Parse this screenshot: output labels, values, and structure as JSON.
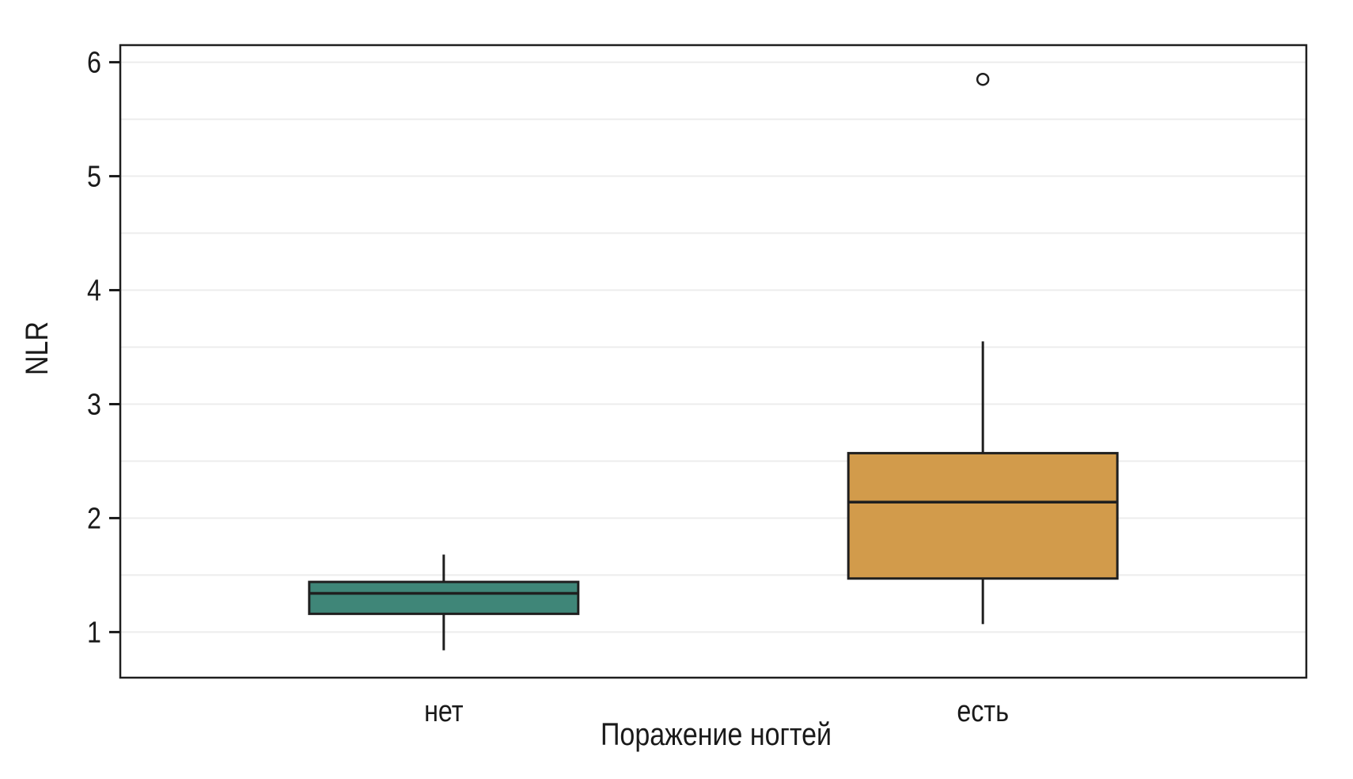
{
  "chart_data": {
    "type": "box",
    "title": "",
    "xlabel": "Поражение ногтей",
    "ylabel": "NLR",
    "categories": [
      "нет",
      "есть"
    ],
    "ylim": [
      0.6,
      6.15
    ],
    "y_ticks": [
      1,
      2,
      3,
      4,
      5,
      6
    ],
    "grid_step": 0.5,
    "grid_on": true,
    "legend": "none",
    "grid_color": "#ececec",
    "frame_color": "#1f1f1f",
    "text_color": "#1a1a1a",
    "boxes": [
      {
        "category": "нет",
        "fill": "#3F8678",
        "whisker_low": 0.84,
        "q1": 1.16,
        "median": 1.34,
        "q3": 1.44,
        "whisker_high": 1.68,
        "outliers": []
      },
      {
        "category": "есть",
        "fill": "#D29B4B",
        "whisker_low": 1.07,
        "q1": 1.47,
        "median": 2.14,
        "q3": 2.57,
        "whisker_high": 3.55,
        "outliers": [
          5.85
        ]
      }
    ]
  }
}
